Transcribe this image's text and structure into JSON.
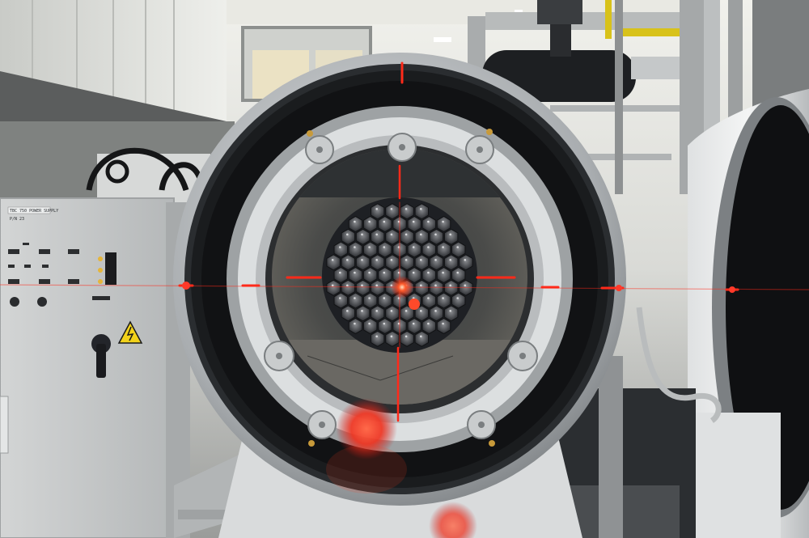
{
  "photo": {
    "subject": "vacuum chamber with hexagonal mirror array and red laser alignment crosshair",
    "colors": {
      "laser": "#ff2a1a",
      "laser_glow": "#ff5a3a",
      "steel": "#c9ccce",
      "ring_dark": "#1c1e20",
      "cabinet": "#cfd2d3",
      "hall_wall": "#e6e7e4",
      "warning": "#f2d21a"
    },
    "icons": [
      "high-voltage-warning-icon",
      "rotary-switch-icon",
      "laser-spot-icon"
    ]
  },
  "cabinet": {
    "label": "TBC 750 POWER SUPPLY",
    "sub_label": "P/N 23"
  }
}
